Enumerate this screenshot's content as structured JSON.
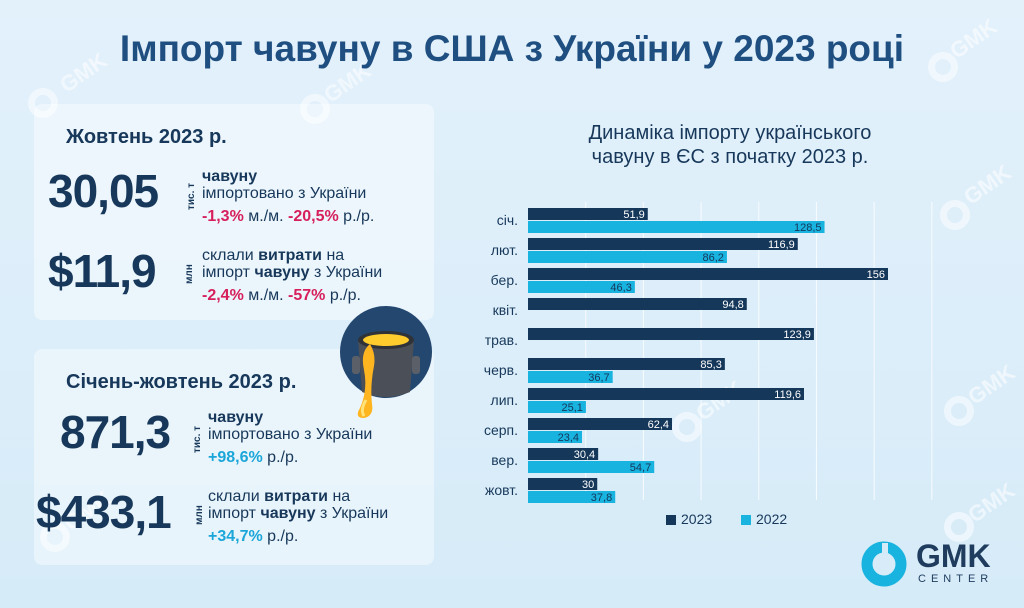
{
  "title": "Імпорт чавуну в США з України у 2023 році",
  "watermark": "GMK",
  "october": {
    "heading": "Жовтень 2023 р.",
    "volume": {
      "value": "30,05",
      "unit": "тис. т",
      "desc_bold": "чавуну",
      "desc_rest": "імпортовано з України",
      "mm": "-1,3%",
      "mm_suffix": " м./м. ",
      "yy": "-20,5%",
      "yy_suffix": " р./р."
    },
    "cost": {
      "value": "$11,9",
      "unit": "млн",
      "desc_part1": "склали ",
      "desc_bold1": "витрати",
      "desc_part2": " на",
      "desc_part3": "імпорт ",
      "desc_bold2": "чавуну",
      "desc_part4": " з України",
      "mm": "-2,4%",
      "mm_suffix": " м./м. ",
      "yy": "-57%",
      "yy_suffix": " р./р."
    }
  },
  "ytd": {
    "heading": "Січень-жовтень 2023 р.",
    "volume": {
      "value": "871,3",
      "unit": "тис. т",
      "desc_bold": "чавуну",
      "desc_rest": "імпортовано з України",
      "yy": "+98,6%",
      "yy_suffix": " р./р."
    },
    "cost": {
      "value": "$433,1",
      "unit": "млн",
      "desc_part1": "склали ",
      "desc_bold1": "витрати",
      "desc_part2": " на",
      "desc_part3": "імпорт ",
      "desc_bold2": "чавуну",
      "desc_part4": " з України",
      "yy": "+34,7%",
      "yy_suffix": " р./р."
    }
  },
  "chart_title_line1": "Динаміка імпорту українського",
  "chart_title_line2": "чавуну в ЄС з початку 2023 р.",
  "chart_data": {
    "type": "bar",
    "orientation": "horizontal",
    "title": "Динаміка імпорту українського чавуну в ЄС з початку 2023 р.",
    "categories": [
      "січ.",
      "лют.",
      "бер.",
      "квіт.",
      "трав.",
      "черв.",
      "лип.",
      "серп.",
      "вер.",
      "жовт."
    ],
    "series": [
      {
        "name": "2023",
        "values": [
          51.9,
          116.9,
          156,
          94.8,
          123.9,
          85.3,
          119.6,
          62.4,
          30.4,
          30
        ],
        "labels": [
          "51,9",
          "116,9",
          "156",
          "94,8",
          "123,9",
          "85,3",
          "119,6",
          "62,4",
          "30,4",
          "30"
        ]
      },
      {
        "name": "2022",
        "values": [
          128.5,
          86.2,
          46.3,
          null,
          null,
          36.7,
          25.1,
          23.4,
          54.7,
          37.8
        ],
        "labels": [
          "128,5",
          "86,2",
          "46,3",
          "",
          "",
          "36,7",
          "25,1",
          "23,4",
          "54,7",
          "37,8"
        ]
      }
    ],
    "xlim": [
      0,
      175
    ],
    "grid": true,
    "legend_position": "bottom"
  },
  "colors": {
    "series_2023": "#15375a",
    "series_2022": "#19b3e0",
    "negative": "#d61f5b",
    "positive": "#1ba6d9"
  },
  "logo": {
    "name": "GMK",
    "sub": "CENTER",
    "icon": "gmk-ring-logo"
  }
}
